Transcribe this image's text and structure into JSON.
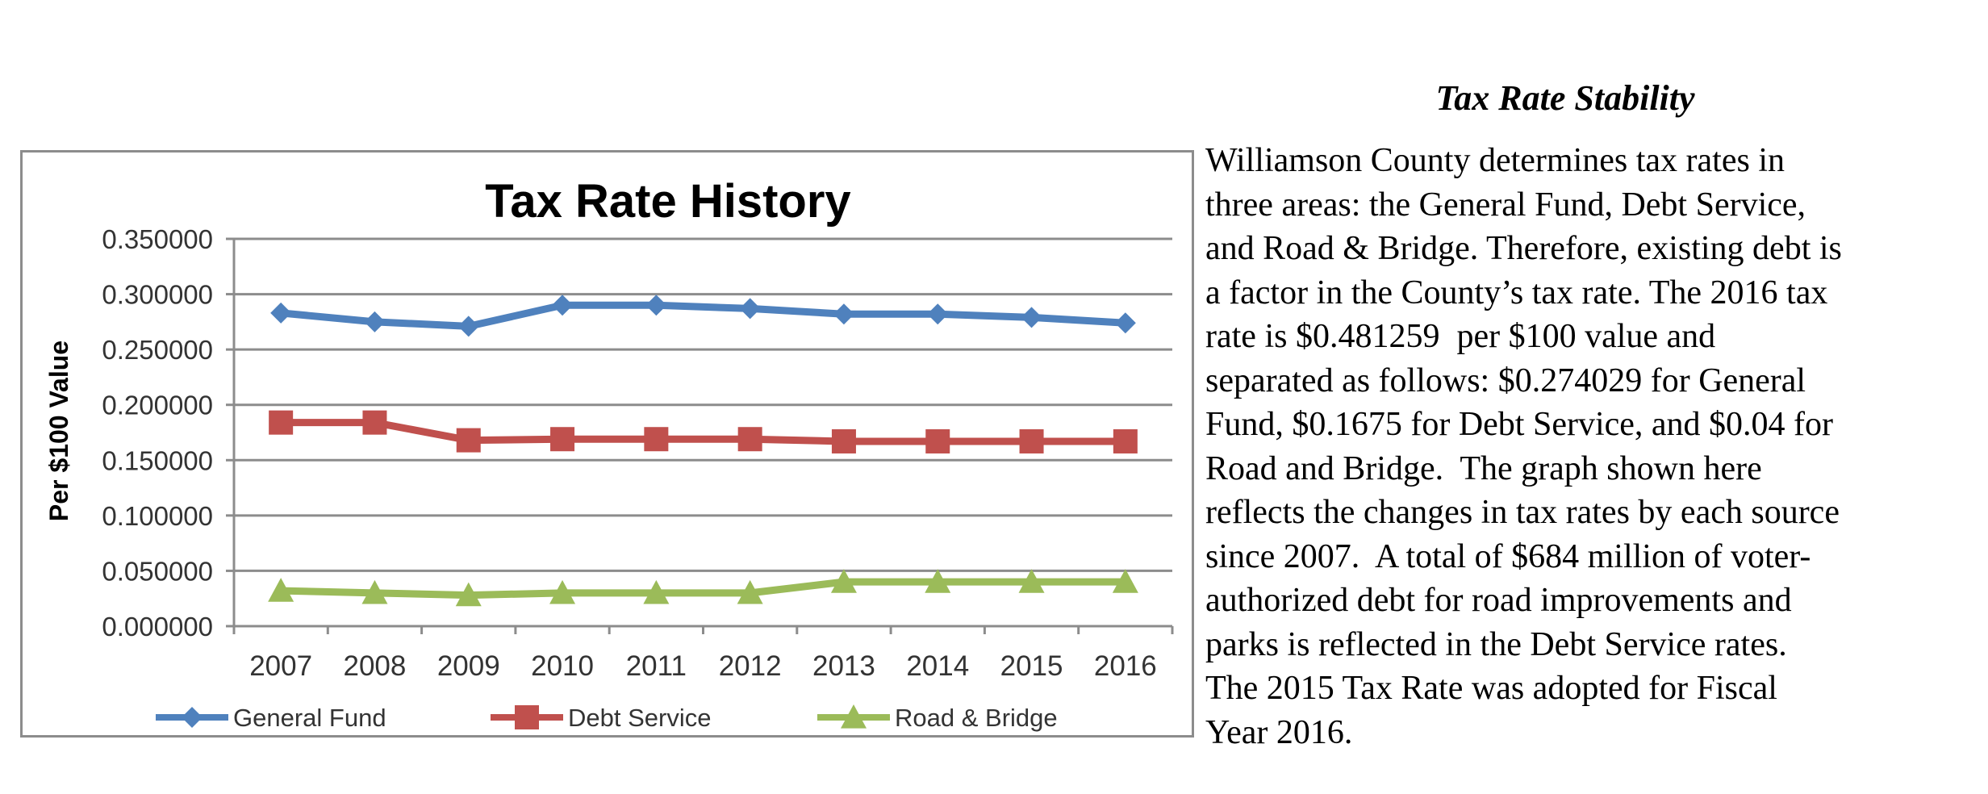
{
  "chart_data": {
    "type": "line",
    "title": "Tax Rate History",
    "ylabel": "Per $100 Value",
    "xlabel": "",
    "ylim": [
      0,
      0.35
    ],
    "yticks": [
      "0.000000",
      "0.050000",
      "0.100000",
      "0.150000",
      "0.200000",
      "0.250000",
      "0.300000",
      "0.350000"
    ],
    "grid": true,
    "legend": "bottom",
    "categories": [
      "2007",
      "2008",
      "2009",
      "2010",
      "2011",
      "2012",
      "2013",
      "2014",
      "2015",
      "2016"
    ],
    "series": [
      {
        "name": "General Fund",
        "color": "#4f81bd",
        "marker": "diamond",
        "values": [
          0.283,
          0.275,
          0.271,
          0.29,
          0.29,
          0.287,
          0.282,
          0.282,
          0.279,
          0.274
        ]
      },
      {
        "name": "Debt Service",
        "color": "#c0504d",
        "marker": "square",
        "values": [
          0.184,
          0.184,
          0.168,
          0.169,
          0.169,
          0.169,
          0.167,
          0.167,
          0.167,
          0.167
        ]
      },
      {
        "name": "Road & Bridge",
        "color": "#9bbb59",
        "marker": "triangle",
        "values": [
          0.032,
          0.03,
          0.028,
          0.03,
          0.03,
          0.03,
          0.04,
          0.04,
          0.04,
          0.04
        ]
      }
    ]
  },
  "side": {
    "title": "Tax Rate Stability",
    "lines": [
      "Williamson County determines tax rates in",
      "three areas: the General Fund, Debt Service,",
      "and Road & Bridge. Therefore, existing debt is",
      "a factor in the County’s tax rate. The 2016 tax",
      "rate is $0.481259  per $100 value and",
      "separated as follows: $0.274029 for General",
      "Fund, $0.1675 for Debt Service, and $0.04 for",
      "Road and Bridge.  The graph shown here",
      "reflects the changes in tax rates by each source",
      "since 2007.  A total of $684 million of voter-",
      "authorized debt for road improvements and",
      "parks is reflected in the Debt Service rates.",
      "The 2015 Tax Rate was adopted for Fiscal",
      "Year 2016."
    ]
  }
}
